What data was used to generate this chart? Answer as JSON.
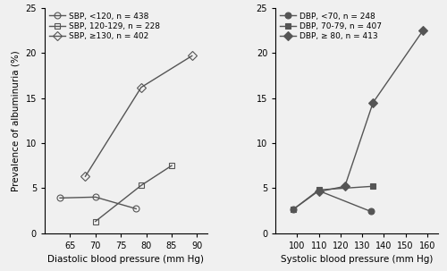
{
  "left_panel": {
    "xlabel": "Diastolic blood pressure (mm Hg)",
    "ylabel": "Prevalence of albuminuria (%)",
    "xlim": [
      60,
      92
    ],
    "ylim": [
      0,
      25
    ],
    "xticks": [
      65,
      70,
      75,
      80,
      85,
      90
    ],
    "yticks": [
      0,
      5,
      10,
      15,
      20,
      25
    ],
    "series": [
      {
        "label": "SBP, <120, n = 438",
        "x": [
          63,
          70,
          78
        ],
        "y": [
          3.9,
          4.0,
          2.7
        ],
        "marker": "o",
        "fillstyle": "none",
        "color": "#555555"
      },
      {
        "label": "SBP, 120-129, n = 228",
        "x": [
          70,
          79,
          85
        ],
        "y": [
          1.3,
          5.3,
          7.5
        ],
        "marker": "s",
        "fillstyle": "none",
        "color": "#555555"
      },
      {
        "label": "SBP, ≥130, n = 402",
        "x": [
          68,
          79,
          89
        ],
        "y": [
          6.3,
          16.2,
          19.7
        ],
        "marker": "D",
        "fillstyle": "none",
        "color": "#555555"
      }
    ]
  },
  "right_panel": {
    "xlabel": "Systolic blood pressure (mm Hg)",
    "ylabel": "Prevalence of albuminuria (%)",
    "xlim": [
      90,
      165
    ],
    "ylim": [
      0,
      25
    ],
    "xticks": [
      100,
      110,
      120,
      130,
      140,
      150,
      160
    ],
    "yticks": [
      0,
      5,
      10,
      15,
      20,
      25
    ],
    "series": [
      {
        "label": "DBP, <70, n = 248",
        "x": [
          98,
          110,
          134
        ],
        "y": [
          2.6,
          4.7,
          2.4
        ],
        "marker": "o",
        "fillstyle": "full",
        "color": "#555555"
      },
      {
        "label": "DBP, 70-79, n = 407",
        "x": [
          98,
          110,
          135
        ],
        "y": [
          2.6,
          4.8,
          5.2
        ],
        "marker": "s",
        "fillstyle": "full",
        "color": "#555555"
      },
      {
        "label": "DBP, ≥ 80, n = 413",
        "x": [
          110,
          122,
          135,
          158
        ],
        "y": [
          4.6,
          5.2,
          14.5,
          22.5
        ],
        "marker": "D",
        "fillstyle": "full",
        "color": "#555555"
      }
    ]
  },
  "bg_color": "#f0f0f0",
  "markersize": 5,
  "linewidth": 1.0,
  "legend_fontsize": 6.5,
  "axis_fontsize": 7.5,
  "tick_fontsize": 7
}
